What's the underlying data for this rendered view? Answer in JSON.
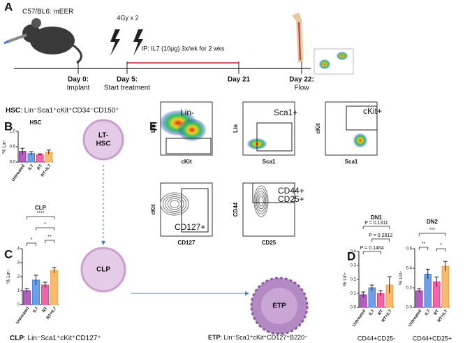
{
  "panels": [
    "A",
    "B",
    "C",
    "D",
    "E"
  ],
  "timeline": {
    "mouse_label": "C57/BL6: mEER",
    "irradiation": "4Gy x 2",
    "treatment": "IP: IL7 (10μg) 3x/wk for 2 wks",
    "events": [
      {
        "day": "Day 0:",
        "desc": "Implant"
      },
      {
        "day": "Day 5:",
        "desc": "Start treatment"
      },
      {
        "day": "Day 21"
      },
      {
        "day": "Day 22:",
        "desc": "Flow"
      }
    ]
  },
  "populations": [
    {
      "name": "HSC",
      "marker": ": Lin⁻Sca1⁺cKit⁺CD34⁻CD150⁺"
    },
    {
      "name": "CLP",
      "marker": ": Lin⁻Sca1⁺cKit⁺CD127⁺"
    },
    {
      "name": "ETP",
      "marker": ": Lin⁻Sca1⁺cKit⁺CD127⁺B220⁻"
    }
  ],
  "cells": [
    {
      "label_lines": [
        "LT-",
        "HSC"
      ]
    },
    {
      "label_lines": [
        "CLP"
      ]
    },
    {
      "label_lines": [
        "ETP"
      ]
    }
  ],
  "flow_plots": [
    {
      "gate_lines": [
        "Lin-"
      ],
      "xlabel": "cKit",
      "ylabel": "Lin"
    },
    {
      "gate_lines": [
        "Sca1+"
      ],
      "xlabel": "Sca1",
      "ylabel": "Lin"
    },
    {
      "gate_lines": [
        "cKit+"
      ],
      "xlabel": "Sca1",
      "ylabel": "cKit"
    },
    {
      "gate_lines": [
        "CD127+"
      ],
      "xlabel": "CD127",
      "ylabel": "cKit"
    },
    {
      "gate_lines": [
        "CD44+",
        "CD25+"
      ],
      "xlabel": "CD25",
      "ylabel": "CD44"
    }
  ],
  "chart_data": [
    {
      "type": "bar",
      "title": "HSC",
      "ylabel": "% Lin-",
      "categories": [
        "Untreated",
        "IL7",
        "RT",
        "RT+IL7"
      ],
      "values": [
        0.35,
        0.28,
        0.24,
        0.32
      ],
      "errors": [
        0.1,
        0.06,
        0.03,
        0.07
      ],
      "colors": [
        "#9c27b0",
        "#3d7fe0",
        "#e8348c",
        "#f5a142"
      ],
      "ylim": [
        0,
        1
      ],
      "yticks": [
        {
          "value": 0,
          "label": "0.0"
        },
        0.5,
        {
          "value": 1,
          "label": "1.0"
        }
      ],
      "annotations": []
    },
    {
      "type": "bar",
      "title": "CLP",
      "ylabel": "% Lin-",
      "categories": [
        "Untreated",
        "IL7",
        "RT",
        "RT+IL7"
      ],
      "values": [
        1.0,
        1.75,
        1.4,
        2.45
      ],
      "errors": [
        0.15,
        0.35,
        0.2,
        0.2
      ],
      "colors": [
        "#9c27b0",
        "#3d7fe0",
        "#e8348c",
        "#f5a142"
      ],
      "ylim": [
        0,
        4
      ],
      "yticks": [
        0,
        1,
        2,
        3,
        4
      ],
      "annotations": [
        "****",
        "*",
        "*",
        "**"
      ]
    },
    {
      "type": "bar",
      "title": "DN1",
      "ylabel": "% Lin-",
      "xlabel": "CD44+CD25-",
      "categories": [
        "Untreated",
        "IL7",
        "RT",
        "RT+IL7"
      ],
      "values": [
        0.09,
        0.14,
        0.1,
        0.16
      ],
      "errors": [
        0.02,
        0.02,
        0.02,
        0.06
      ],
      "colors": [
        "#9c27b0",
        "#3d7fe0",
        "#e8348c",
        "#f5a142"
      ],
      "ylim": [
        0,
        0.4
      ],
      "yticks": [
        {
          "value": 0,
          "label": "0.0"
        },
        0.1,
        0.2,
        0.3,
        0.4
      ],
      "annotations": [
        "P = 0.1311",
        "P = 0.1464",
        "P = 0.2812"
      ]
    },
    {
      "type": "bar",
      "title": "DN2",
      "ylabel": "% Lin-",
      "xlabel": "CD44+CD25+",
      "categories": [
        "Untreated",
        "IL7",
        "RT",
        "RT+IL7"
      ],
      "values": [
        0.17,
        0.34,
        0.26,
        0.42
      ],
      "errors": [
        0.02,
        0.05,
        0.05,
        0.05
      ],
      "colors": [
        "#9c27b0",
        "#3d7fe0",
        "#e8348c",
        "#f5a142"
      ],
      "ylim": [
        0,
        0.6
      ],
      "yticks": [
        {
          "value": 0,
          "label": "0.0"
        },
        0.2,
        0.4,
        0.6
      ],
      "annotations": [
        "***",
        "**",
        "*"
      ]
    }
  ]
}
